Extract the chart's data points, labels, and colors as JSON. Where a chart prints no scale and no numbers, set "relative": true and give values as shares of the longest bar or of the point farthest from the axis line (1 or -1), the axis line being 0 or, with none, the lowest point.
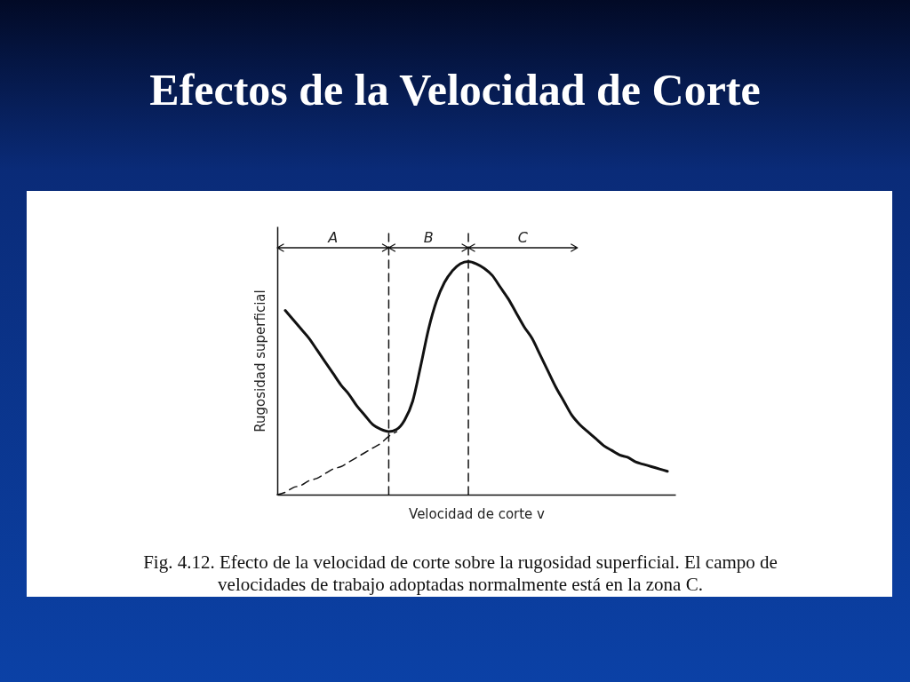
{
  "chart_data": {
    "type": "line",
    "title": "Efectos de la Velocidad de Corte",
    "xlabel": "Velocidad de corte v",
    "ylabel": "Rugosidad superficial",
    "relative": true,
    "categories": [
      null,
      null,
      null,
      null,
      null,
      null,
      null,
      null,
      null,
      null,
      null,
      null,
      null,
      null,
      null,
      null,
      null,
      null,
      null,
      null,
      null,
      null,
      null,
      null,
      null,
      null,
      null,
      null,
      null,
      null,
      null,
      null,
      null,
      null,
      null,
      null,
      null,
      null,
      null,
      null,
      null,
      null,
      null,
      null,
      null,
      null,
      null,
      null,
      null,
      null,
      null
    ],
    "series": [
      {
        "color": "#111111",
        "line_style": "solid",
        "values": [
          null,
          0.79,
          0.75,
          0.71,
          0.67,
          0.62,
          0.57,
          0.52,
          0.47,
          0.43,
          0.38,
          0.34,
          0.3,
          0.28,
          0.27,
          0.28,
          0.32,
          0.4,
          0.55,
          0.71,
          0.83,
          0.91,
          0.96,
          0.99,
          1,
          0.99,
          0.97,
          0.94,
          0.89,
          0.84,
          0.78,
          0.72,
          0.67,
          0.6,
          0.53,
          0.46,
          0.4,
          0.34,
          0.3,
          0.27,
          0.24,
          0.21,
          0.19,
          0.17,
          0.16,
          0.14,
          0.13,
          0.12,
          0.11,
          0.1,
          null
        ]
      },
      {
        "color": "#111111",
        "line_style": "dashed",
        "values": [
          0,
          0.01,
          0.03,
          0.04,
          0.06,
          0.07,
          0.09,
          0.11,
          0.12,
          0.14,
          0.16,
          0.18,
          0.2,
          0.22,
          0.25,
          0.27,
          null,
          null,
          null,
          null,
          null,
          null,
          null,
          null,
          null,
          null,
          null,
          null,
          null,
          null,
          null,
          null,
          null,
          null,
          null,
          null,
          null,
          null,
          null,
          null,
          null,
          null,
          null,
          null,
          null,
          null,
          null,
          null,
          null,
          null,
          null
        ]
      }
    ],
    "annotations": [
      "A",
      "B",
      "C",
      "Fig. 4.12. Efecto de la velocidad de corte sobre la rugosidad superficial. El campo de velocidades de trabajo adoptadas normalmente está en la zona C."
    ]
  }
}
